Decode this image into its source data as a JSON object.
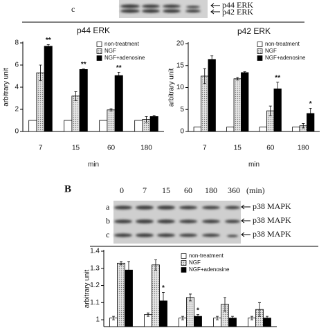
{
  "panel_c_blot": {
    "label": "c",
    "bands": [
      "p44 ERK",
      "p42 ERK"
    ]
  },
  "panel_b": {
    "label": "B",
    "times": [
      "0",
      "7",
      "15",
      "60",
      "180",
      "360"
    ],
    "unit": "(min)",
    "rows": [
      {
        "label": "a",
        "band": "p38 MAPK"
      },
      {
        "label": "b",
        "band": "p38 MAPK"
      },
      {
        "label": "c",
        "band": "p38 MAPK"
      }
    ]
  },
  "chart_data": [
    {
      "type": "bar",
      "title": "p44 ERK",
      "x_label": "min",
      "y_label": "arbitrary unit",
      "categories": [
        "7",
        "15",
        "60",
        "180"
      ],
      "ylim": [
        0,
        8
      ],
      "yticks": [
        0,
        2,
        4,
        6,
        8
      ],
      "legend": "upper right",
      "series": [
        {
          "name": "non-treatment",
          "color": "#ffffff",
          "values": [
            1,
            1,
            1,
            1
          ]
        },
        {
          "name": "NGF",
          "color": "#d0d0d0",
          "values": [
            5.3,
            3.2,
            1.95,
            1.1
          ],
          "errors": [
            0.7,
            0.4,
            0.1,
            0.25
          ]
        },
        {
          "name": "NGF+adenosine",
          "color": "#000000",
          "values": [
            7.7,
            5.6,
            5.05,
            1.35
          ],
          "errors": [
            0.15,
            0.05,
            0.3,
            0.1
          ],
          "star_labels": [
            "**",
            "**",
            "**",
            null
          ]
        }
      ]
    },
    {
      "type": "bar",
      "title": "p42 ERK",
      "x_label": "min",
      "y_label": "arbitrary unit",
      "categories": [
        "7",
        "15",
        "60",
        "180"
      ],
      "ylim": [
        0,
        20
      ],
      "yticks": [
        0,
        5,
        10,
        15,
        20
      ],
      "legend": "upper right",
      "series": [
        {
          "name": "non-treatment",
          "color": "#ffffff",
          "values": [
            1,
            1,
            1,
            1
          ]
        },
        {
          "name": "NGF",
          "color": "#d0d0d0",
          "values": [
            12.6,
            12,
            4.7,
            1.3
          ],
          "errors": [
            1.7,
            0.3,
            1.1,
            0.5
          ]
        },
        {
          "name": "NGF+adenosine",
          "color": "#000000",
          "values": [
            16.4,
            13.4,
            9.7,
            4.1
          ],
          "errors": [
            0.8,
            0.2,
            1.5,
            1.2
          ],
          "star_labels": [
            null,
            null,
            "**",
            "*"
          ]
        }
      ]
    },
    {
      "type": "bar",
      "y_label": "arbitrary unit",
      "categories": [
        null,
        null,
        null,
        null,
        null
      ],
      "ylim": [
        0.96,
        1.4
      ],
      "yticks": [
        {
          "value": 1.0,
          "label": "1"
        },
        1.1,
        1.2,
        1.3,
        1.4
      ],
      "legend": "upper right",
      "series": [
        {
          "name": "non-treatment",
          "color": "#ffffff",
          "values": [
            1.01,
            1.03,
            1.01,
            1.01,
            1.01
          ],
          "errors": [
            0.01,
            0.01,
            0.01,
            0.01,
            0.01
          ]
        },
        {
          "name": "NGF",
          "color": "#d0d0d0",
          "values": [
            1.33,
            1.32,
            1.13,
            1.09,
            1.06
          ],
          "errors": [
            0.01,
            0.03,
            0.02,
            0.04,
            0.04
          ]
        },
        {
          "name": "NGF+adenosine",
          "color": "#000000",
          "values": [
            1.29,
            1.11,
            1.02,
            1.01,
            1.01
          ],
          "errors": [
            0.05,
            0.05,
            0.01,
            0.01,
            0.01
          ],
          "star_labels": [
            null,
            "*",
            "*",
            null,
            null
          ]
        }
      ]
    }
  ]
}
